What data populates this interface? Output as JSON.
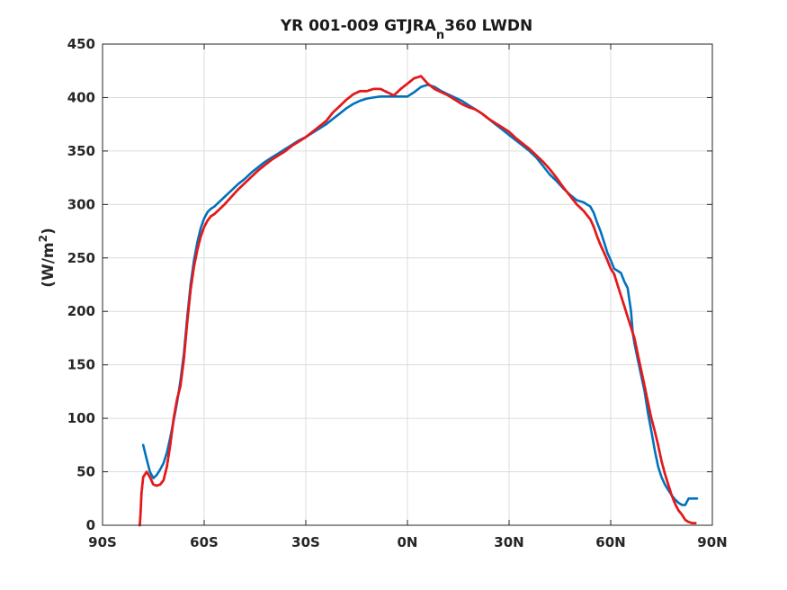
{
  "chart_data": {
    "type": "line",
    "title": "YR 001-009 GTJRA",
    "title_subscript": "n",
    "title_suffix": "360 LWDN",
    "xlabel": "",
    "ylabel": "(W/m",
    "ylabel_superscript": "2",
    "ylabel_suffix": ")",
    "xlim": [
      -90,
      90
    ],
    "ylim": [
      0,
      450
    ],
    "x_ticks": [
      -90,
      -60,
      -30,
      0,
      30,
      60,
      90
    ],
    "x_tick_labels": [
      "90S",
      "60S",
      "30S",
      "0N",
      "30N",
      "60N",
      "90N"
    ],
    "y_ticks": [
      0,
      50,
      100,
      150,
      200,
      250,
      300,
      350,
      400,
      450
    ],
    "y_tick_labels": [
      "0",
      "50",
      "100",
      "150",
      "200",
      "250",
      "300",
      "350",
      "400",
      "450"
    ],
    "grid": true,
    "series": [
      {
        "color": "#0072bd",
        "style": "solid",
        "x": [
          -78,
          -77,
          -76,
          -75,
          -74,
          -73,
          -72,
          -71,
          -70,
          -69,
          -68,
          -67,
          -66,
          -65,
          -64,
          -63,
          -62,
          -61,
          -60,
          -59,
          -58,
          -57,
          -56,
          -55,
          -54,
          -52,
          -50,
          -48,
          -46,
          -44,
          -42,
          -40,
          -38,
          -36,
          -34,
          -32,
          -30,
          -28,
          -26,
          -24,
          -22,
          -20,
          -18,
          -16,
          -14,
          -12,
          -10,
          -8,
          -6,
          -4,
          -2,
          0,
          2,
          4,
          6,
          8,
          10,
          12,
          14,
          16,
          18,
          20,
          22,
          24,
          26,
          28,
          30,
          32,
          34,
          36,
          38,
          40,
          42,
          44,
          46,
          48,
          50,
          52,
          54,
          55,
          56,
          57,
          58,
          59,
          60,
          61,
          62,
          63,
          64,
          64.5,
          65,
          66,
          66.5,
          67,
          68,
          69,
          70,
          71,
          72,
          73,
          74,
          75,
          76,
          77,
          78,
          79,
          80,
          81,
          82,
          83,
          84,
          85,
          85.5
        ],
        "y": [
          75,
          62,
          50,
          44,
          47,
          52,
          58,
          68,
          82,
          98,
          115,
          135,
          160,
          195,
          225,
          248,
          265,
          278,
          287,
          293,
          296,
          298,
          301,
          304,
          307,
          313,
          319,
          324,
          330,
          335,
          340,
          344,
          348,
          352,
          356,
          360,
          363,
          367,
          371,
          375,
          380,
          385,
          390,
          394,
          397,
          399,
          400,
          401,
          401,
          401,
          401,
          401,
          405,
          410,
          412,
          410,
          406,
          403,
          400,
          397,
          393,
          389,
          385,
          380,
          375,
          370,
          365,
          360,
          355,
          350,
          344,
          336,
          328,
          322,
          315,
          309,
          304,
          302,
          298,
          292,
          283,
          275,
          265,
          255,
          248,
          240,
          238,
          236,
          228,
          225,
          222,
          200,
          180,
          170,
          155,
          140,
          125,
          105,
          88,
          70,
          55,
          45,
          38,
          33,
          28,
          24,
          21,
          19,
          19,
          25,
          25,
          25,
          25
        ]
      },
      {
        "color": "#e31a1c",
        "style": "dashed",
        "x": [
          -79,
          -78.8,
          -78.5,
          -78,
          -77,
          -76,
          -75,
          -74,
          -73,
          -72,
          -71,
          -70,
          -69,
          -68,
          -67,
          -66,
          -65,
          -64,
          -63,
          -62,
          -61,
          -60,
          -59,
          -58,
          -57,
          -56,
          -55,
          -54,
          -52,
          -50,
          -48,
          -46,
          -44,
          -42,
          -40,
          -38,
          -36,
          -34,
          -32,
          -30,
          -28,
          -26,
          -24,
          -22,
          -20,
          -18,
          -16,
          -14,
          -12,
          -10,
          -8,
          -6,
          -4,
          -2,
          0,
          2,
          4,
          6,
          8,
          10,
          12,
          14,
          16,
          18,
          20,
          22,
          24,
          26,
          28,
          30,
          32,
          34,
          36,
          38,
          40,
          42,
          44,
          46,
          48,
          50,
          52,
          54,
          55,
          56,
          57,
          58,
          59,
          60,
          61,
          62,
          63,
          64,
          65,
          66,
          67,
          68,
          69,
          70,
          71,
          72,
          73,
          74,
          75,
          76,
          77,
          78,
          79,
          80,
          81,
          82,
          83,
          84,
          84.5,
          85
        ],
        "y": [
          0,
          10,
          30,
          45,
          50,
          45,
          38,
          37,
          38,
          42,
          55,
          75,
          100,
          118,
          130,
          155,
          190,
          220,
          242,
          258,
          270,
          279,
          285,
          289,
          291,
          294,
          297,
          300,
          307,
          314,
          320,
          326,
          332,
          337,
          342,
          346,
          350,
          355,
          359,
          363,
          368,
          373,
          378,
          386,
          392,
          398,
          403,
          406,
          406,
          408,
          408,
          405,
          402,
          408,
          413,
          418,
          420,
          413,
          408,
          405,
          402,
          398,
          394,
          391,
          389,
          385,
          380,
          376,
          372,
          368,
          362,
          357,
          352,
          346,
          340,
          333,
          325,
          316,
          308,
          300,
          294,
          286,
          279,
          270,
          262,
          255,
          248,
          240,
          235,
          225,
          215,
          205,
          195,
          185,
          175,
          160,
          145,
          130,
          115,
          100,
          88,
          75,
          60,
          48,
          38,
          28,
          20,
          14,
          10,
          5,
          3,
          2,
          2,
          2
        ]
      }
    ]
  }
}
